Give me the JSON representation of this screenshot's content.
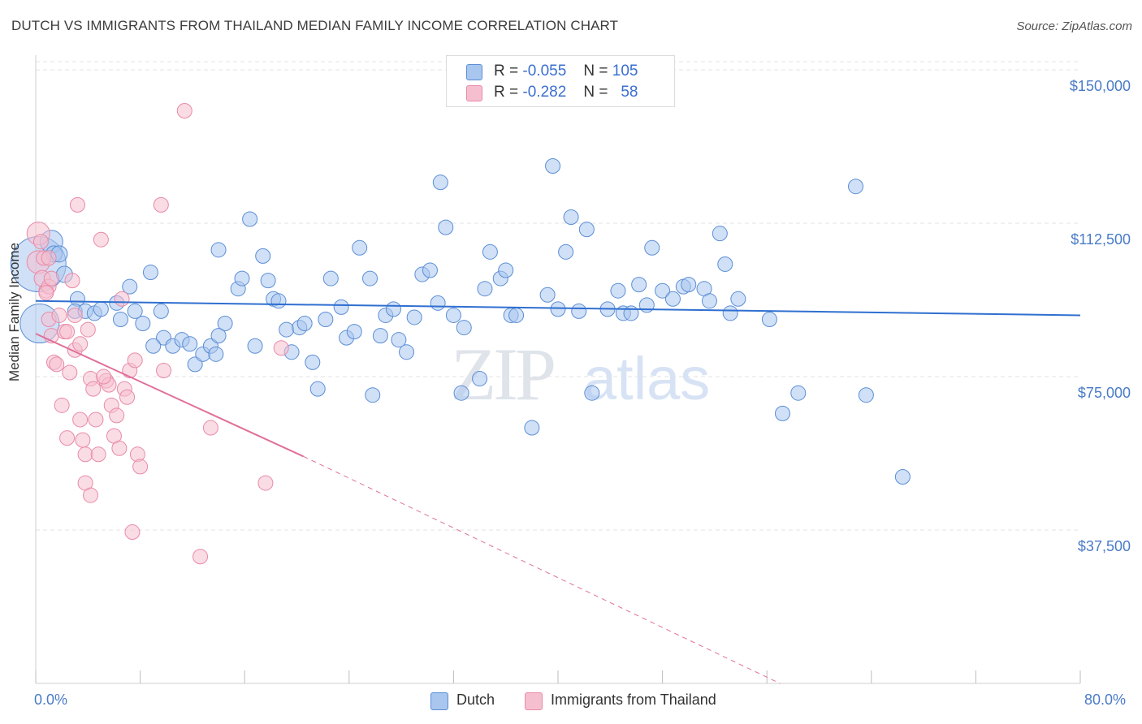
{
  "title": "DUTCH VS IMMIGRANTS FROM THAILAND MEDIAN FAMILY INCOME CORRELATION CHART",
  "source": "Source: ZipAtlas.com",
  "watermark": {
    "zip": "ZIP",
    "atlas": "atlas"
  },
  "colors": {
    "dutch_fill": "#a9c6ee",
    "dutch_stroke": "#5b8ed6",
    "dutch_line": "#2f6fd0",
    "thai_fill": "#f6bfd0",
    "thai_stroke": "#e88aa8",
    "thai_line": "#e0709a",
    "grid": "#e3e3e3",
    "axis_label": "#4a7bc8"
  },
  "legend": {
    "rows": [
      {
        "r_label": "R =",
        "r_value": "-0.055",
        "n_label": "N =",
        "n_value": "105"
      },
      {
        "r_label": "R =",
        "r_value": "-0.282",
        "n_label": "N =",
        "n_value": "58"
      }
    ]
  },
  "chart_data": {
    "type": "scatter",
    "xlabel": "",
    "ylabel": "Median Family Income",
    "xlim": [
      0,
      80
    ],
    "ylim": [
      0,
      152000
    ],
    "x_tick_labels": [
      "0.0%",
      "80.0%"
    ],
    "y_ticks": [
      37500,
      75000,
      112500,
      150000
    ],
    "y_tick_labels": [
      "$37,500",
      "$75,000",
      "$112,500",
      "$150,000"
    ],
    "grid": "horizontal dashed",
    "legend_placement": "bottom-center",
    "series": [
      {
        "name": "Dutch",
        "trend": {
          "x0": 0,
          "y0": 93500,
          "x1": 80,
          "y1": 90000,
          "dashed_from": null
        },
        "points": [
          [
            0.2,
            102500,
            34
          ],
          [
            0.3,
            88000,
            24
          ],
          [
            1.2,
            108000,
            14
          ],
          [
            1.4,
            105000,
            10
          ],
          [
            1.8,
            105000,
            10
          ],
          [
            2.2,
            100000,
            10
          ],
          [
            3.2,
            94000,
            9
          ],
          [
            3.0,
            91000,
            9
          ],
          [
            3.8,
            91000,
            9
          ],
          [
            4.5,
            90500,
            9
          ],
          [
            5.0,
            91500,
            9
          ],
          [
            6.2,
            93000,
            9
          ],
          [
            6.5,
            89000,
            9
          ],
          [
            7.2,
            97000,
            9
          ],
          [
            8.2,
            88000,
            9
          ],
          [
            8.8,
            100500,
            9
          ],
          [
            9.6,
            91000,
            9
          ],
          [
            9.8,
            84500,
            9
          ],
          [
            10.5,
            82500,
            9
          ],
          [
            11.2,
            84000,
            9
          ],
          [
            11.8,
            83000,
            9
          ],
          [
            12.2,
            78000,
            9
          ],
          [
            12.8,
            80500,
            9
          ],
          [
            13.4,
            82500,
            9
          ],
          [
            13.8,
            80500,
            9
          ],
          [
            14.0,
            106000,
            9
          ],
          [
            14.5,
            88000,
            9
          ],
          [
            15.5,
            96500,
            9
          ],
          [
            15.8,
            99000,
            9
          ],
          [
            16.4,
            113500,
            9
          ],
          [
            16.8,
            82500,
            9
          ],
          [
            17.4,
            104500,
            9
          ],
          [
            17.8,
            98500,
            9
          ],
          [
            18.2,
            94000,
            9
          ],
          [
            18.6,
            93500,
            9
          ],
          [
            19.2,
            86500,
            9
          ],
          [
            19.6,
            81000,
            9
          ],
          [
            20.2,
            87000,
            9
          ],
          [
            20.6,
            88000,
            9
          ],
          [
            21.2,
            78500,
            9
          ],
          [
            21.6,
            72000,
            9
          ],
          [
            22.2,
            89000,
            9
          ],
          [
            22.6,
            99000,
            9
          ],
          [
            23.4,
            92000,
            9
          ],
          [
            23.8,
            84500,
            9
          ],
          [
            24.4,
            86000,
            9
          ],
          [
            24.8,
            106500,
            9
          ],
          [
            25.6,
            99000,
            9
          ],
          [
            25.8,
            70500,
            9
          ],
          [
            26.4,
            85000,
            9
          ],
          [
            26.8,
            90000,
            9
          ],
          [
            27.4,
            91500,
            9
          ],
          [
            27.8,
            84000,
            9
          ],
          [
            28.4,
            81000,
            9
          ],
          [
            29.0,
            89500,
            9
          ],
          [
            29.6,
            100000,
            9
          ],
          [
            30.2,
            101000,
            9
          ],
          [
            30.8,
            93000,
            9
          ],
          [
            31.0,
            122500,
            9
          ],
          [
            31.4,
            111500,
            9
          ],
          [
            32.0,
            90000,
            9
          ],
          [
            32.6,
            71000,
            9
          ],
          [
            32.8,
            87000,
            9
          ],
          [
            34.0,
            74500,
            9
          ],
          [
            34.4,
            96500,
            9
          ],
          [
            34.8,
            105500,
            9
          ],
          [
            35.6,
            99000,
            9
          ],
          [
            36.0,
            101000,
            9
          ],
          [
            36.4,
            90000,
            9
          ],
          [
            36.8,
            90000,
            9
          ],
          [
            38.0,
            62500,
            9
          ],
          [
            39.2,
            95000,
            9
          ],
          [
            39.6,
            126500,
            9
          ],
          [
            40.0,
            91500,
            9
          ],
          [
            40.6,
            105500,
            9
          ],
          [
            41.0,
            114000,
            9
          ],
          [
            41.6,
            91000,
            9
          ],
          [
            42.2,
            111000,
            9
          ],
          [
            42.6,
            71000,
            9
          ],
          [
            43.8,
            91500,
            9
          ],
          [
            44.6,
            96000,
            9
          ],
          [
            45.0,
            90500,
            9
          ],
          [
            45.6,
            90500,
            9
          ],
          [
            46.2,
            97500,
            9
          ],
          [
            46.8,
            92500,
            9
          ],
          [
            47.2,
            106500,
            9
          ],
          [
            48.0,
            96000,
            9
          ],
          [
            48.8,
            94000,
            9
          ],
          [
            49.6,
            97000,
            9
          ],
          [
            50.0,
            97500,
            9
          ],
          [
            51.2,
            96500,
            9
          ],
          [
            51.6,
            93500,
            9
          ],
          [
            52.4,
            110000,
            9
          ],
          [
            52.8,
            102500,
            9
          ],
          [
            53.2,
            90500,
            9
          ],
          [
            53.8,
            94000,
            9
          ],
          [
            56.2,
            89000,
            9
          ],
          [
            57.2,
            66000,
            9
          ],
          [
            58.4,
            71000,
            9
          ],
          [
            62.8,
            121500,
            9
          ],
          [
            63.6,
            70500,
            9
          ],
          [
            66.4,
            50500,
            9
          ],
          [
            14.0,
            85000,
            9
          ],
          [
            9.0,
            82500,
            9
          ],
          [
            7.6,
            91000,
            9
          ]
        ]
      },
      {
        "name": "Immigrants from Thailand",
        "trend": {
          "x0": 0,
          "y0": 85500,
          "x1": 20.5,
          "y1": 55500,
          "dashed_to_x": 57,
          "dashed_to_y": 0
        },
        "points": [
          [
            0.2,
            110000,
            14
          ],
          [
            0.2,
            103000,
            14
          ],
          [
            0.5,
            99000,
            10
          ],
          [
            0.6,
            104000,
            9
          ],
          [
            0.8,
            96000,
            9
          ],
          [
            1.0,
            97000,
            9
          ],
          [
            1.0,
            89000,
            9
          ],
          [
            1.2,
            85000,
            9
          ],
          [
            1.4,
            78500,
            9
          ],
          [
            1.6,
            78000,
            9
          ],
          [
            1.8,
            90000,
            9
          ],
          [
            2.0,
            68000,
            9
          ],
          [
            2.2,
            86000,
            9
          ],
          [
            2.4,
            60000,
            9
          ],
          [
            2.6,
            76000,
            9
          ],
          [
            2.8,
            98500,
            9
          ],
          [
            3.0,
            90000,
            9
          ],
          [
            3.0,
            81500,
            9
          ],
          [
            3.2,
            117000,
            9
          ],
          [
            3.4,
            83000,
            9
          ],
          [
            3.4,
            64500,
            9
          ],
          [
            3.6,
            59500,
            9
          ],
          [
            3.8,
            56000,
            9
          ],
          [
            3.8,
            49000,
            9
          ],
          [
            4.0,
            86500,
            9
          ],
          [
            4.2,
            74500,
            9
          ],
          [
            4.2,
            46000,
            9
          ],
          [
            4.4,
            72000,
            9
          ],
          [
            4.6,
            64500,
            9
          ],
          [
            4.8,
            56000,
            9
          ],
          [
            5.0,
            108500,
            9
          ],
          [
            5.4,
            74000,
            9
          ],
          [
            5.6,
            73000,
            9
          ],
          [
            5.8,
            68000,
            9
          ],
          [
            6.0,
            60500,
            9
          ],
          [
            6.2,
            65500,
            9
          ],
          [
            6.4,
            57500,
            9
          ],
          [
            6.6,
            94000,
            9
          ],
          [
            6.8,
            72000,
            9
          ],
          [
            7.0,
            70000,
            9
          ],
          [
            7.2,
            76500,
            9
          ],
          [
            7.4,
            37000,
            9
          ],
          [
            7.6,
            79000,
            9
          ],
          [
            7.8,
            56000,
            9
          ],
          [
            8.0,
            53000,
            9
          ],
          [
            9.6,
            117000,
            9
          ],
          [
            9.8,
            76500,
            9
          ],
          [
            11.4,
            140000,
            9
          ],
          [
            12.6,
            31000,
            9
          ],
          [
            13.4,
            62500,
            9
          ],
          [
            17.6,
            49000,
            9
          ],
          [
            18.8,
            82000,
            9
          ],
          [
            1.0,
            104000,
            9
          ],
          [
            0.4,
            108000,
            9
          ],
          [
            0.8,
            95500,
            9
          ],
          [
            2.4,
            86000,
            9
          ],
          [
            5.2,
            75000,
            9
          ],
          [
            1.2,
            99000,
            9
          ]
        ]
      }
    ]
  },
  "bottom_legend": [
    "Dutch",
    "Immigrants from Thailand"
  ]
}
